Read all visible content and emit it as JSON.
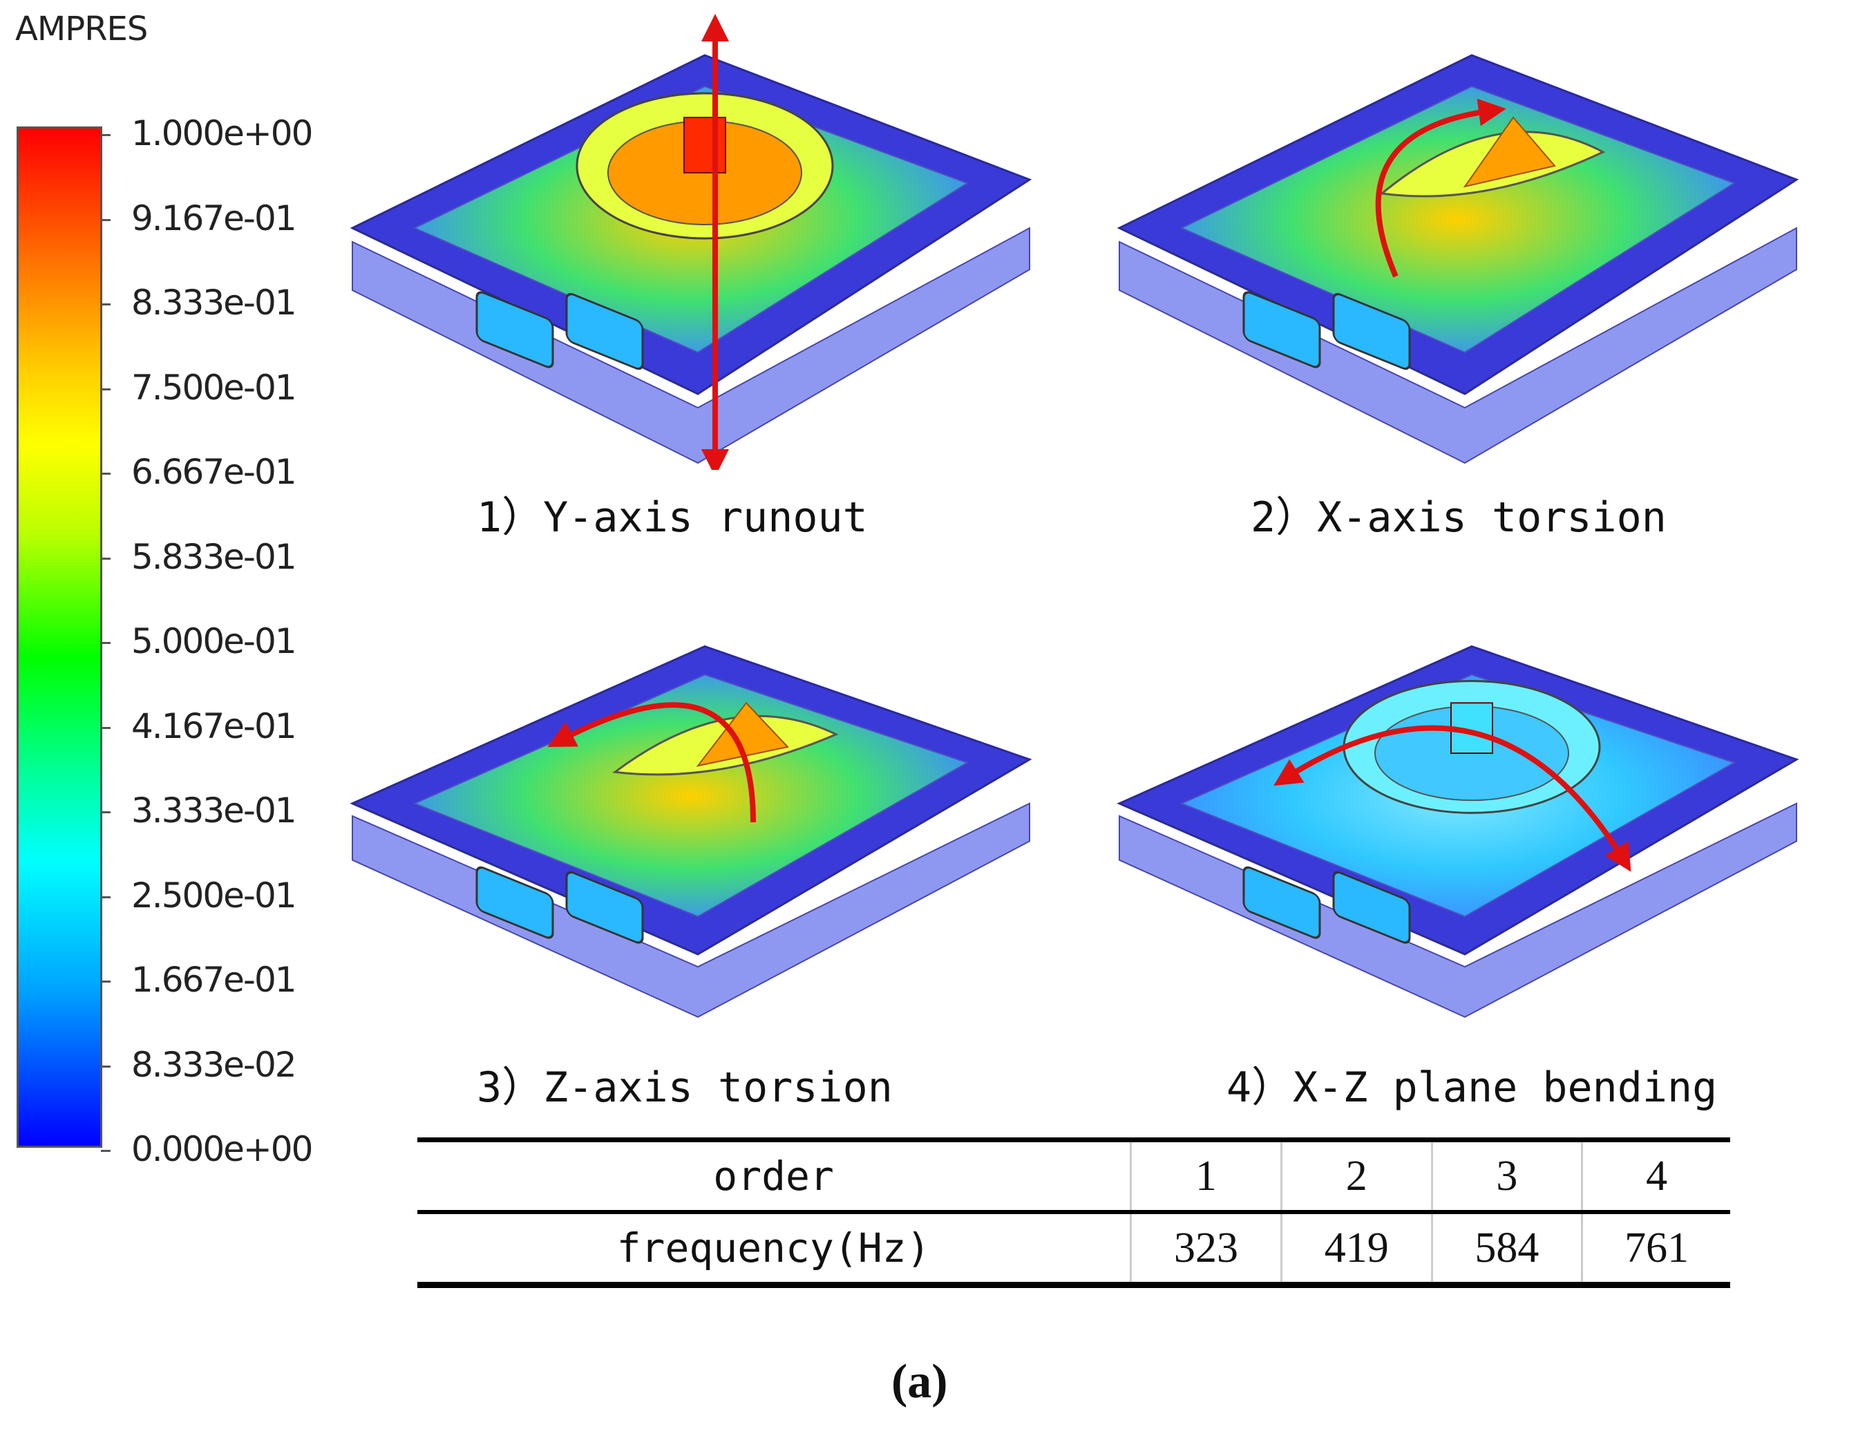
{
  "legend": {
    "title": "AMPRES",
    "ticks": [
      "1.000e+00",
      "9.167e-01",
      "8.333e-01",
      "7.500e-01",
      "6.667e-01",
      "5.833e-01",
      "5.000e-01",
      "4.167e-01",
      "3.333e-01",
      "2.500e-01",
      "1.667e-01",
      "8.333e-02",
      "0.000e+00"
    ]
  },
  "panels": [
    {
      "caption": "1）Y-axis runout",
      "hot_color": "#ff2a00",
      "mode": "vertical"
    },
    {
      "caption": "2）X-axis torsion",
      "hot_color": "#ffa000",
      "mode": "x-torsion"
    },
    {
      "caption": "3）Z-axis torsion",
      "hot_color": "#ffa000",
      "mode": "z-torsion"
    },
    {
      "caption": "4）X-Z plane bending",
      "hot_color": "#40e0ff",
      "mode": "bending"
    }
  ],
  "table": {
    "header": [
      "order",
      "1",
      "2",
      "3",
      "4"
    ],
    "row": [
      "frequency(Hz)",
      "323",
      "419",
      "584",
      "761"
    ]
  },
  "figure_label": "(a)",
  "colors": {
    "frame": "#3a3ad8",
    "arrow": "#e01010"
  }
}
